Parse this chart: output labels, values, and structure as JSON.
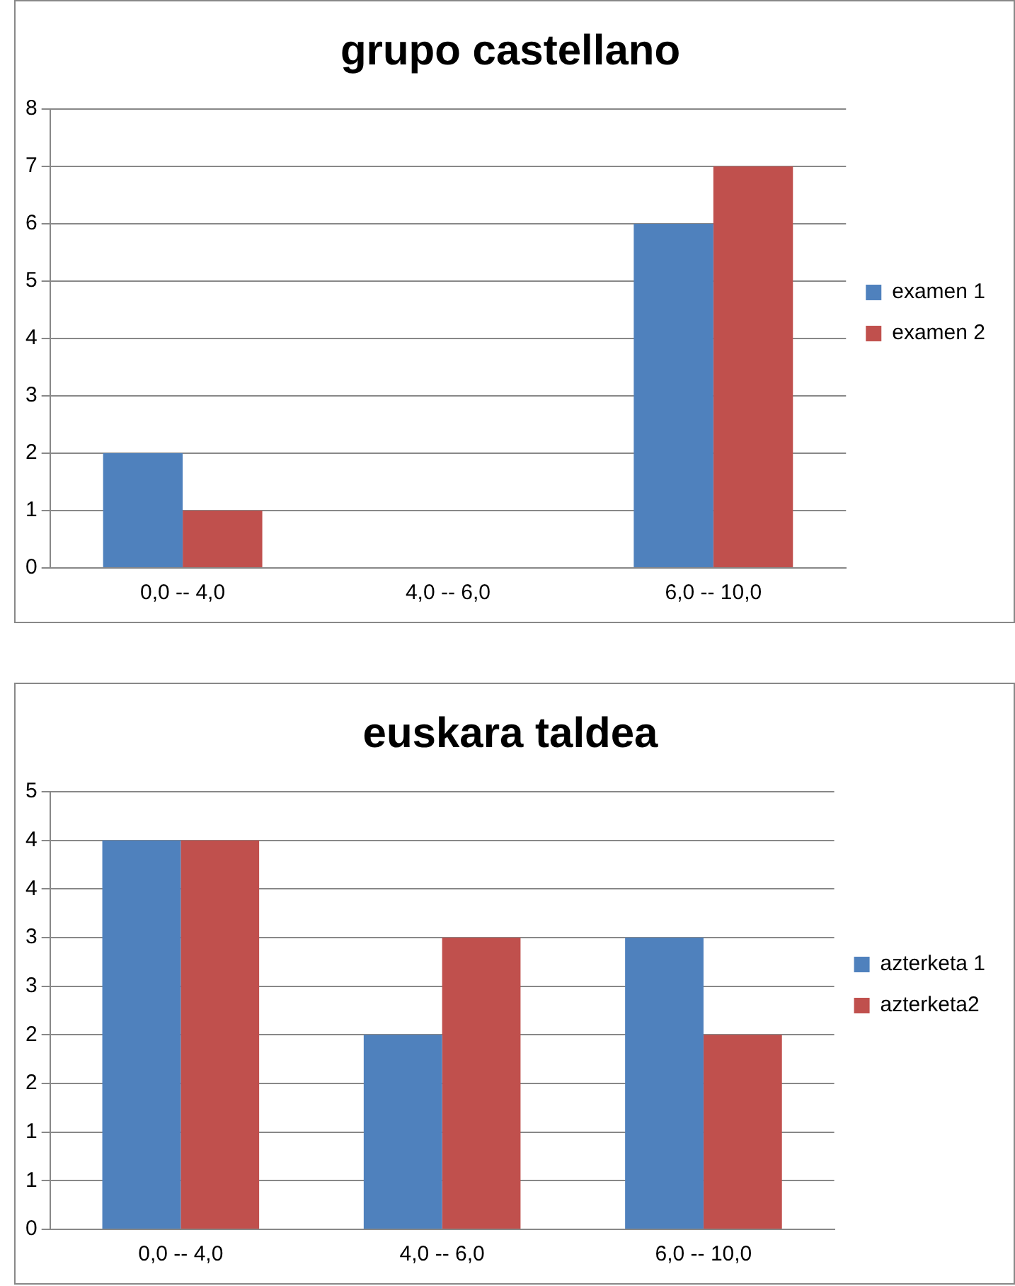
{
  "chart_data": [
    {
      "type": "bar",
      "title": "grupo castellano",
      "categories": [
        "0,0 -- 4,0",
        "4,0 -- 6,0",
        "6,0 -- 10,0"
      ],
      "series": [
        {
          "name": "examen 1",
          "color": "#4f81bd",
          "values": [
            2,
            0,
            6
          ]
        },
        {
          "name": "examen 2",
          "color": "#c0504d",
          "values": [
            1,
            0,
            7
          ]
        }
      ],
      "ylim": [
        0,
        8
      ],
      "yticks": [
        0,
        1,
        2,
        3,
        4,
        5,
        6,
        7,
        8
      ],
      "grid": "y",
      "legend": "right"
    },
    {
      "type": "bar",
      "title": "euskara taldea",
      "categories": [
        "0,0 -- 4,0",
        "4,0 -- 6,0",
        "6,0 -- 10,0"
      ],
      "series": [
        {
          "name": "azterketa 1",
          "color": "#4f81bd",
          "values": [
            4,
            2,
            3
          ]
        },
        {
          "name": "azterketa2",
          "color": "#c0504d",
          "values": [
            4,
            3,
            2
          ]
        }
      ],
      "ylim": [
        0,
        4.5
      ],
      "yticks": [
        0,
        {
          "value": 0.5,
          "label": "1"
        },
        1,
        {
          "value": 1.5,
          "label": "2"
        },
        2,
        {
          "value": 2.5,
          "label": "3"
        },
        3,
        {
          "value": 3.5,
          "label": "4"
        },
        4,
        {
          "value": 4.5,
          "label": "5"
        }
      ],
      "grid": "y",
      "legend": "right"
    }
  ]
}
